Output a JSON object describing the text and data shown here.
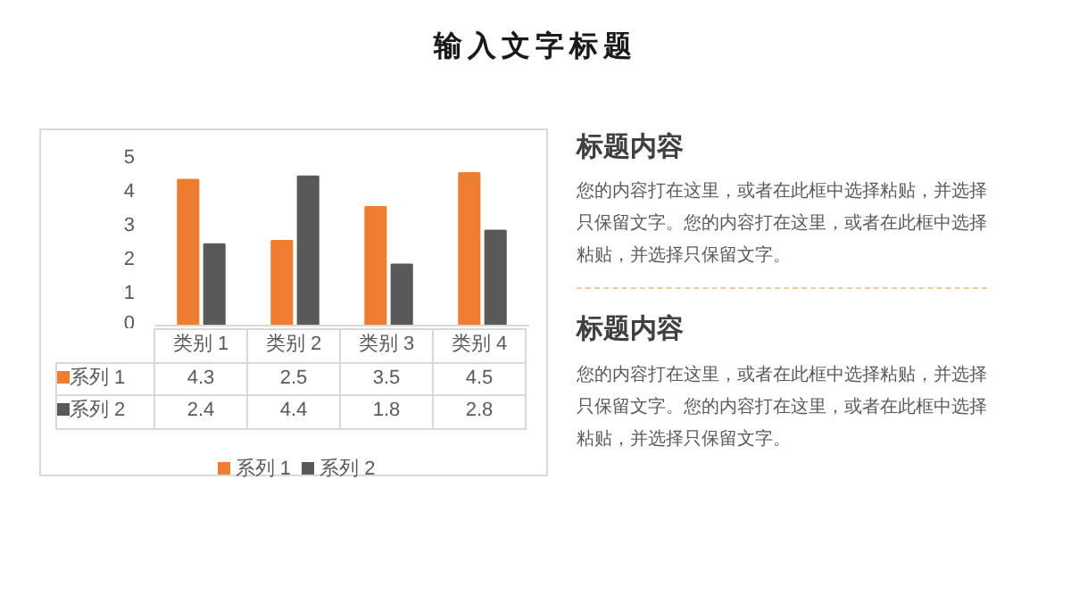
{
  "chart_data": {
    "type": "bar",
    "title": "输入文字标题",
    "categories": [
      "类别 1",
      "类别 2",
      "类别 3",
      "类别 4"
    ],
    "series": [
      {
        "name": "系列 1",
        "color": "#ed7d31",
        "values": [
          4.3,
          2.5,
          3.5,
          4.5
        ]
      },
      {
        "name": "系列 2",
        "color": "#595959",
        "values": [
          2.4,
          4.4,
          1.8,
          2.8
        ]
      }
    ],
    "ylim": [
      0,
      5
    ],
    "yticks": [
      0,
      1,
      2,
      3,
      4,
      5
    ],
    "data_labels": true,
    "legend": "bottom",
    "annotations": [
      "标题内容",
      "您的内容打在这里，或者在此框中选择粘贴，并选择只保留文字。您的内容打在这里，或者在此框中选择粘贴，并选择只保留文字。",
      "标题内容",
      "您的内容打在这里，或者在此框中选择粘贴，并选择只保留文字。您的内容打在这里，或者在此框中选择粘贴，并选择只保留文字。"
    ]
  }
}
